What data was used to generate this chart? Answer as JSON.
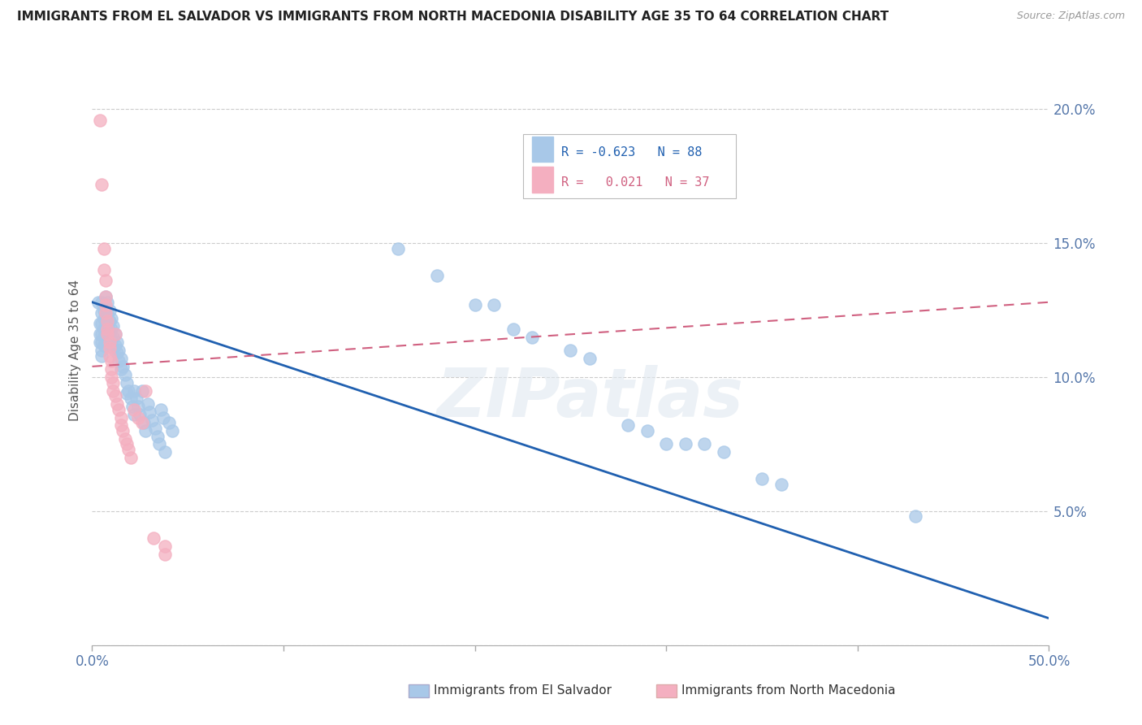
{
  "title": "IMMIGRANTS FROM EL SALVADOR VS IMMIGRANTS FROM NORTH MACEDONIA DISABILITY AGE 35 TO 64 CORRELATION CHART",
  "source": "Source: ZipAtlas.com",
  "ylabel": "Disability Age 35 to 64",
  "watermark": "ZIPatlas",
  "legend_blue_r": "-0.623",
  "legend_blue_n": "88",
  "legend_pink_r": "0.021",
  "legend_pink_n": "37",
  "blue_color": "#a8c8e8",
  "pink_color": "#f4afc0",
  "blue_line_color": "#2060b0",
  "pink_line_color": "#d06080",
  "blue_scatter": [
    [
      0.003,
      0.128
    ],
    [
      0.004,
      0.12
    ],
    [
      0.004,
      0.116
    ],
    [
      0.004,
      0.113
    ],
    [
      0.005,
      0.128
    ],
    [
      0.005,
      0.124
    ],
    [
      0.005,
      0.12
    ],
    [
      0.005,
      0.116
    ],
    [
      0.005,
      0.113
    ],
    [
      0.005,
      0.11
    ],
    [
      0.005,
      0.108
    ],
    [
      0.006,
      0.125
    ],
    [
      0.006,
      0.122
    ],
    [
      0.006,
      0.118
    ],
    [
      0.006,
      0.115
    ],
    [
      0.006,
      0.112
    ],
    [
      0.007,
      0.13
    ],
    [
      0.007,
      0.126
    ],
    [
      0.007,
      0.122
    ],
    [
      0.007,
      0.119
    ],
    [
      0.007,
      0.116
    ],
    [
      0.007,
      0.113
    ],
    [
      0.008,
      0.128
    ],
    [
      0.008,
      0.124
    ],
    [
      0.008,
      0.12
    ],
    [
      0.008,
      0.116
    ],
    [
      0.008,
      0.113
    ],
    [
      0.009,
      0.125
    ],
    [
      0.009,
      0.121
    ],
    [
      0.009,
      0.117
    ],
    [
      0.009,
      0.113
    ],
    [
      0.01,
      0.122
    ],
    [
      0.01,
      0.118
    ],
    [
      0.01,
      0.114
    ],
    [
      0.011,
      0.119
    ],
    [
      0.011,
      0.115
    ],
    [
      0.011,
      0.111
    ],
    [
      0.012,
      0.116
    ],
    [
      0.012,
      0.112
    ],
    [
      0.013,
      0.113
    ],
    [
      0.013,
      0.109
    ],
    [
      0.014,
      0.11
    ],
    [
      0.014,
      0.106
    ],
    [
      0.015,
      0.107
    ],
    [
      0.015,
      0.103
    ],
    [
      0.016,
      0.104
    ],
    [
      0.017,
      0.101
    ],
    [
      0.018,
      0.098
    ],
    [
      0.018,
      0.094
    ],
    [
      0.019,
      0.095
    ],
    [
      0.02,
      0.092
    ],
    [
      0.021,
      0.089
    ],
    [
      0.022,
      0.095
    ],
    [
      0.022,
      0.086
    ],
    [
      0.023,
      0.092
    ],
    [
      0.024,
      0.089
    ],
    [
      0.025,
      0.086
    ],
    [
      0.026,
      0.095
    ],
    [
      0.027,
      0.083
    ],
    [
      0.028,
      0.08
    ],
    [
      0.029,
      0.09
    ],
    [
      0.03,
      0.087
    ],
    [
      0.031,
      0.084
    ],
    [
      0.033,
      0.081
    ],
    [
      0.034,
      0.078
    ],
    [
      0.035,
      0.075
    ],
    [
      0.036,
      0.088
    ],
    [
      0.037,
      0.085
    ],
    [
      0.038,
      0.072
    ],
    [
      0.04,
      0.083
    ],
    [
      0.042,
      0.08
    ],
    [
      0.16,
      0.148
    ],
    [
      0.18,
      0.138
    ],
    [
      0.2,
      0.127
    ],
    [
      0.21,
      0.127
    ],
    [
      0.22,
      0.118
    ],
    [
      0.23,
      0.115
    ],
    [
      0.25,
      0.11
    ],
    [
      0.26,
      0.107
    ],
    [
      0.28,
      0.082
    ],
    [
      0.29,
      0.08
    ],
    [
      0.3,
      0.075
    ],
    [
      0.31,
      0.075
    ],
    [
      0.32,
      0.075
    ],
    [
      0.33,
      0.072
    ],
    [
      0.35,
      0.062
    ],
    [
      0.36,
      0.06
    ],
    [
      0.43,
      0.048
    ]
  ],
  "pink_scatter": [
    [
      0.004,
      0.196
    ],
    [
      0.005,
      0.172
    ],
    [
      0.006,
      0.148
    ],
    [
      0.006,
      0.14
    ],
    [
      0.007,
      0.136
    ],
    [
      0.007,
      0.13
    ],
    [
      0.007,
      0.127
    ],
    [
      0.007,
      0.124
    ],
    [
      0.008,
      0.121
    ],
    [
      0.008,
      0.118
    ],
    [
      0.008,
      0.116
    ],
    [
      0.009,
      0.113
    ],
    [
      0.009,
      0.111
    ],
    [
      0.009,
      0.108
    ],
    [
      0.01,
      0.106
    ],
    [
      0.01,
      0.103
    ],
    [
      0.01,
      0.1
    ],
    [
      0.011,
      0.098
    ],
    [
      0.011,
      0.095
    ],
    [
      0.012,
      0.116
    ],
    [
      0.012,
      0.093
    ],
    [
      0.013,
      0.09
    ],
    [
      0.014,
      0.088
    ],
    [
      0.015,
      0.085
    ],
    [
      0.015,
      0.082
    ],
    [
      0.016,
      0.08
    ],
    [
      0.017,
      0.077
    ],
    [
      0.018,
      0.075
    ],
    [
      0.019,
      0.073
    ],
    [
      0.02,
      0.07
    ],
    [
      0.022,
      0.088
    ],
    [
      0.024,
      0.085
    ],
    [
      0.026,
      0.083
    ],
    [
      0.028,
      0.095
    ],
    [
      0.032,
      0.04
    ],
    [
      0.038,
      0.037
    ],
    [
      0.038,
      0.034
    ]
  ],
  "xlim": [
    0.0,
    0.5
  ],
  "ylim": [
    0.0,
    0.22
  ],
  "blue_trend": [
    0.0,
    0.5,
    0.128,
    0.01
  ],
  "pink_trend": [
    0.0,
    0.5,
    0.104,
    0.128
  ],
  "xtick_vals": [
    0.0,
    0.1,
    0.2,
    0.3,
    0.4,
    0.5
  ],
  "ytick_vals": [
    0.0,
    0.05,
    0.1,
    0.15,
    0.2
  ],
  "legend_label_blue": "Immigrants from El Salvador",
  "legend_label_pink": "Immigrants from North Macedonia"
}
